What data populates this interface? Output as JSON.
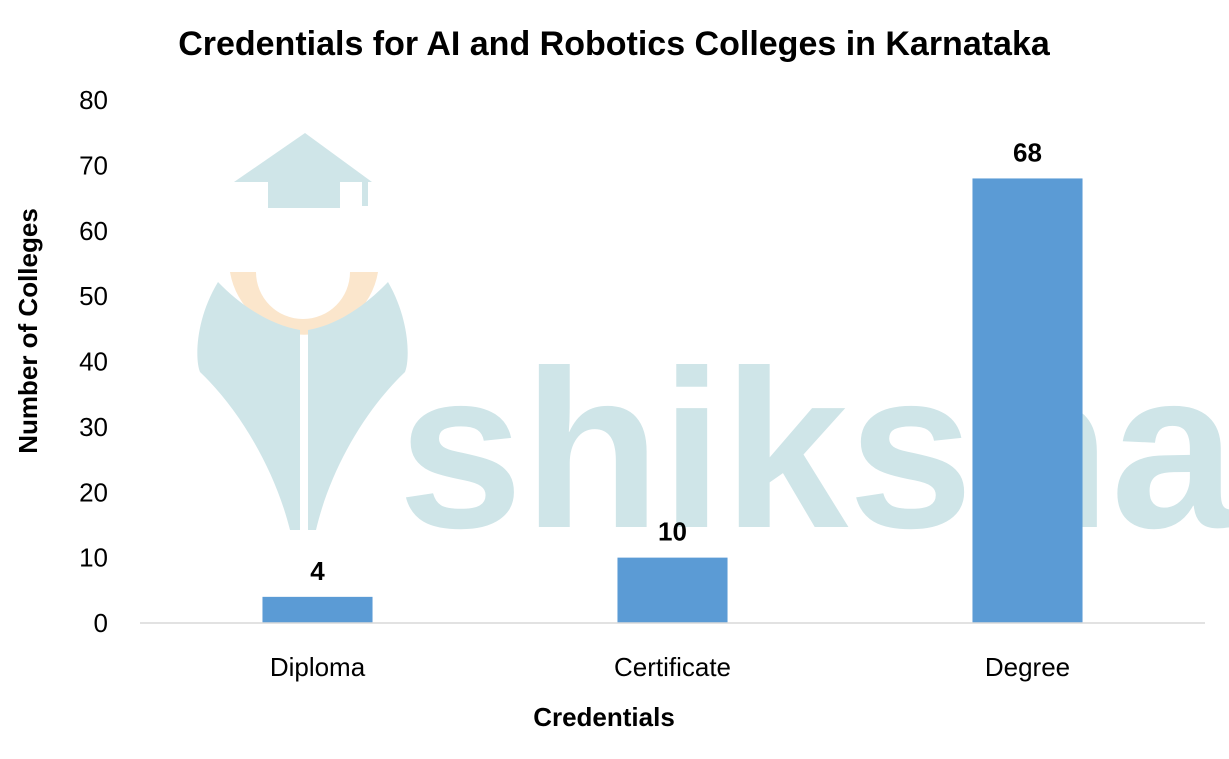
{
  "chart_data": {
    "type": "bar",
    "title": "Credentials for AI and Robotics Colleges in Karnataka",
    "xlabel": "Credentials",
    "ylabel": "Number of Colleges",
    "categories": [
      "Diploma",
      "Certificate",
      "Degree"
    ],
    "values": [
      4,
      10,
      68
    ],
    "ylim": [
      0,
      80
    ],
    "yticks": [
      0,
      10,
      20,
      30,
      40,
      50,
      60,
      70,
      80
    ],
    "data_labels": true,
    "grid": false,
    "legend": "none",
    "bar_color": "#5B9BD5"
  },
  "watermark": {
    "text": "shiksha",
    "colors": {
      "main": "#cfe5e8",
      "accent": "#fbe6cc"
    }
  }
}
